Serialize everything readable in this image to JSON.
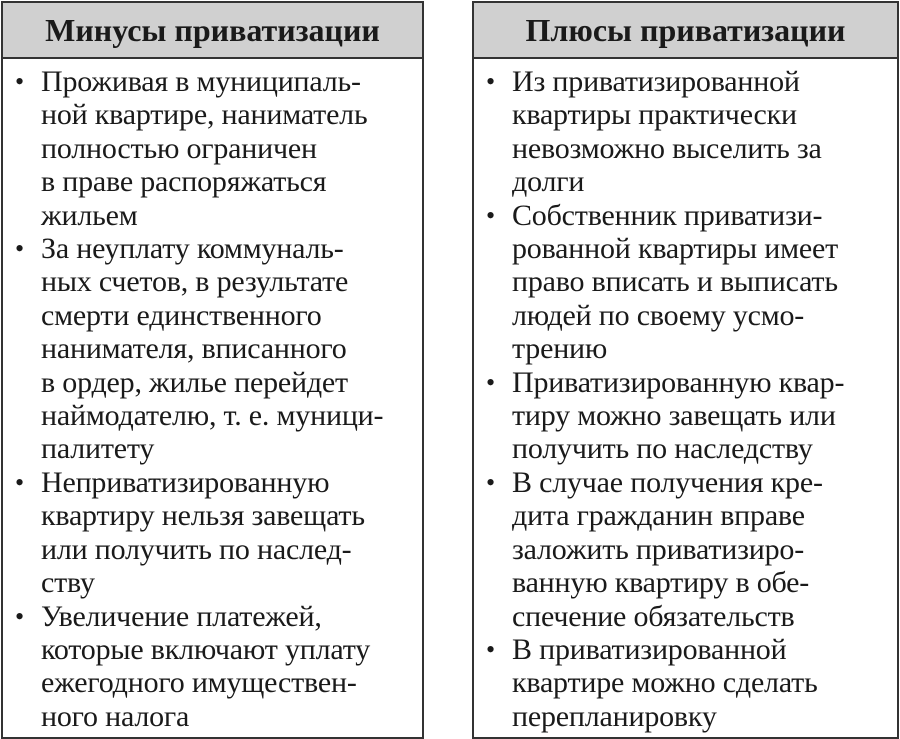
{
  "left": {
    "title": "Минусы приватизации",
    "items": [
      {
        "lines": [
          "Проживая в муниципаль-",
          "ной квартире, наниматель",
          "полностью ограничен",
          "в праве распоряжаться",
          "жильем"
        ]
      },
      {
        "lines": [
          "За неуплату коммуналь-",
          "ных счетов, в результате",
          "смерти единственного",
          "нанимателя, вписанного",
          "в ордер, жилье перейдет",
          "наймодателю, т. е. муници-",
          "палитету"
        ]
      },
      {
        "lines": [
          "Неприватизированную",
          "квартиру нельзя завещать",
          "или получить по наслед-",
          "ству"
        ]
      },
      {
        "lines": [
          "Увеличение платежей,",
          "которые включают уплату",
          "ежегодного имуществен-",
          "ного налога"
        ]
      }
    ]
  },
  "right": {
    "title": "Плюсы приватизации",
    "items": [
      {
        "lines": [
          "Из приватизированной",
          "квартиры практически",
          "невозможно выселить за",
          "долги"
        ]
      },
      {
        "lines": [
          "Собственник приватизи-",
          "рованной квартиры имеет",
          "право вписать и выписать",
          "людей по своему усмо-",
          "трению"
        ]
      },
      {
        "lines": [
          "Приватизированную квар-",
          "тиру можно завещать или",
          "получить по наследству"
        ]
      },
      {
        "lines": [
          "В случае получения кре-",
          "дита гражданин вправе",
          "заложить приватизиро-",
          "ванную квартиру в обе-",
          "спечение обязательств"
        ]
      },
      {
        "lines": [
          "В приватизированной",
          "квартире можно сделать",
          "перепланировку"
        ]
      }
    ]
  },
  "bullet": "•"
}
